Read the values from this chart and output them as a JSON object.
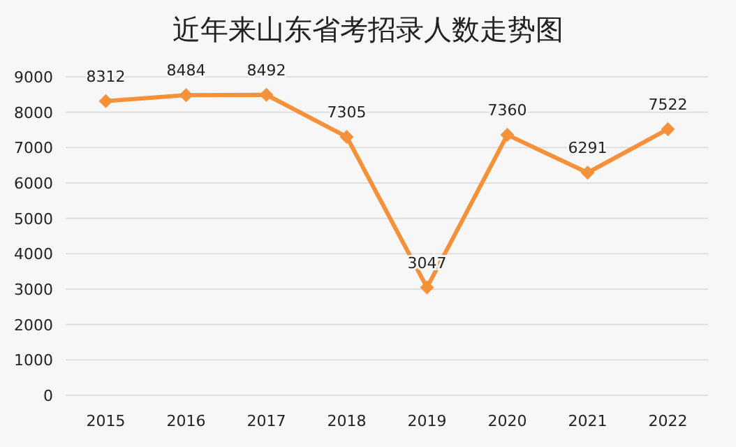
{
  "chart_data": {
    "type": "line",
    "title": "近年来山东省考招录人数走势图",
    "categories": [
      "2015",
      "2016",
      "2017",
      "2018",
      "2019",
      "2020",
      "2021",
      "2022"
    ],
    "series": [
      {
        "color": "#f5913a",
        "values": [
          8312,
          8484,
          8492,
          7305,
          3047,
          7360,
          6291,
          7522
        ]
      }
    ],
    "ylim": [
      0,
      9000
    ],
    "yticks": [
      0,
      1000,
      2000,
      3000,
      4000,
      5000,
      6000,
      7000,
      8000,
      9000
    ],
    "grid": "y",
    "marker": "diamond",
    "line_style": "solid",
    "data_labels": true
  }
}
